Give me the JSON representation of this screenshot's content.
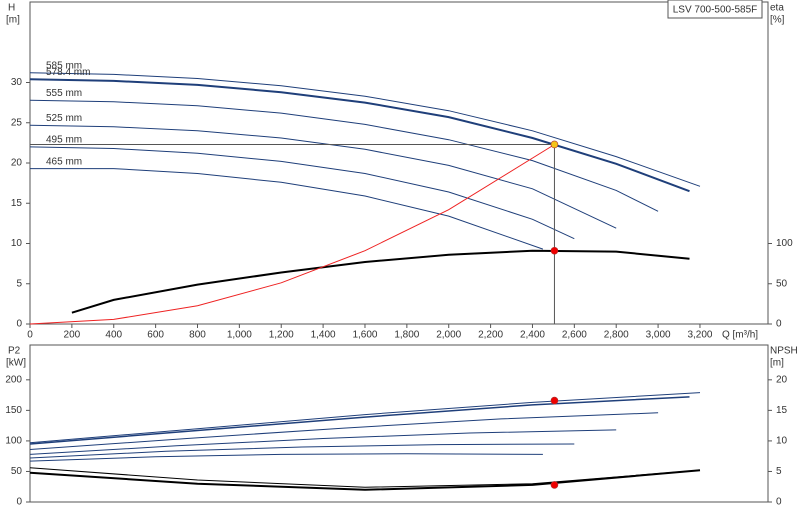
{
  "chart_data": [
    {
      "type": "line",
      "title": "LSV 700-500-585F",
      "ylabel": "H",
      "yunit": "[m]",
      "y2label": "eta",
      "y2unit": "[%]",
      "xlabel": "Q [m³/h]",
      "xlim": [
        0,
        3525
      ],
      "xticks": [
        0,
        200,
        400,
        600,
        800,
        {
          "value": 1000,
          "label": "1,000"
        },
        {
          "value": 1200,
          "label": "1,200"
        },
        {
          "value": 1400,
          "label": "1,400"
        },
        {
          "value": 1600,
          "label": "1,600"
        },
        {
          "value": 1800,
          "label": "1,800"
        },
        {
          "value": 2000,
          "label": "2,000"
        },
        {
          "value": 2200,
          "label": "2,200"
        },
        {
          "value": 2400,
          "label": "2,400"
        },
        {
          "value": 2600,
          "label": "2,600"
        },
        {
          "value": 2800,
          "label": "2,800"
        },
        {
          "value": 3000,
          "label": "3,000"
        },
        {
          "value": 3200,
          "label": "3,200"
        }
      ],
      "ylim": [
        0,
        40
      ],
      "yticks": [
        0,
        5,
        10,
        15,
        20,
        25,
        30
      ],
      "y2lim": [
        0,
        400
      ],
      "y2ticks": [
        0,
        50,
        100
      ],
      "series": [
        {
          "name": "585 mm",
          "color": "#1f3f7a",
          "width": 1,
          "x": [
            0,
            400,
            800,
            1200,
            1600,
            2000,
            2400,
            2800,
            3200
          ],
          "values": [
            31.2,
            31.0,
            30.5,
            29.6,
            28.3,
            26.5,
            24.0,
            20.8,
            17.1
          ]
        },
        {
          "name": "578.4 mm",
          "color": "#1f3f7a",
          "width": 2,
          "x": [
            0,
            400,
            800,
            1200,
            1600,
            2000,
            2400,
            2800,
            3150
          ],
          "values": [
            30.4,
            30.2,
            29.7,
            28.8,
            27.5,
            25.7,
            23.1,
            19.9,
            16.5
          ]
        },
        {
          "name": "555 mm",
          "color": "#1f3f7a",
          "width": 1,
          "x": [
            0,
            400,
            800,
            1200,
            1600,
            2000,
            2400,
            2800,
            3000
          ],
          "values": [
            27.8,
            27.6,
            27.1,
            26.2,
            24.8,
            22.9,
            20.3,
            16.6,
            14.0
          ]
        },
        {
          "name": "525 mm",
          "color": "#1f3f7a",
          "width": 1,
          "x": [
            0,
            400,
            800,
            1200,
            1600,
            2000,
            2400,
            2800
          ],
          "values": [
            24.7,
            24.5,
            24.0,
            23.1,
            21.7,
            19.7,
            16.8,
            11.9
          ]
        },
        {
          "name": "495 mm",
          "color": "#1f3f7a",
          "width": 1,
          "x": [
            0,
            400,
            800,
            1200,
            1600,
            2000,
            2400,
            2600
          ],
          "values": [
            22.0,
            21.8,
            21.2,
            20.2,
            18.7,
            16.4,
            13.0,
            10.6
          ]
        },
        {
          "name": "465 mm",
          "color": "#1f3f7a",
          "width": 1,
          "x": [
            0,
            400,
            800,
            1200,
            1600,
            2000,
            2450
          ],
          "values": [
            19.3,
            19.3,
            18.7,
            17.6,
            15.9,
            13.4,
            9.3
          ]
        },
        {
          "color": "#000000",
          "width": 2,
          "axis": "y2",
          "x": [
            200,
            400,
            800,
            1200,
            1600,
            2000,
            2400,
            2800,
            3150
          ],
          "values": [
            14,
            30,
            49,
            64,
            77,
            86,
            91,
            90,
            81
          ]
        },
        {
          "color": "#ee2222",
          "width": 1,
          "x": [
            0,
            400,
            800,
            1200,
            1600,
            2000,
            2505
          ],
          "values": [
            0,
            0.57,
            2.27,
            5.12,
            9.1,
            14.2,
            22.3
          ]
        }
      ],
      "points": [
        {
          "x": 2505,
          "y": 22.3,
          "color": "#f5c518",
          "guide": true
        },
        {
          "x": 2505,
          "y": 91,
          "color": "#ee0000",
          "axis": "y2"
        }
      ]
    },
    {
      "type": "line",
      "ylabel": "P2",
      "yunit": "[kW]",
      "y2label": "NPSH",
      "y2unit": "[m]",
      "xlim": [
        0,
        3525
      ],
      "ylim": [
        0,
        257
      ],
      "yticks": [
        0,
        50,
        100,
        150,
        200
      ],
      "y2lim": [
        0,
        25.7
      ],
      "y2ticks": [
        0,
        5,
        10,
        15,
        20
      ],
      "series": [
        {
          "color": "#1f3f7a",
          "width": 1,
          "x": [
            0,
            800,
            1600,
            2400,
            3200
          ],
          "values": [
            97,
            120,
            143,
            163,
            179
          ]
        },
        {
          "color": "#1f3f7a",
          "width": 1.5,
          "x": [
            0,
            800,
            1600,
            2400,
            3150
          ],
          "values": [
            95,
            117,
            139,
            159,
            172
          ]
        },
        {
          "color": "#1f3f7a",
          "width": 1,
          "x": [
            0,
            750,
            1500,
            2250,
            3000
          ],
          "values": [
            86,
            104,
            121,
            136,
            146
          ]
        },
        {
          "color": "#1f3f7a",
          "width": 1,
          "x": [
            0,
            700,
            1400,
            2100,
            2800
          ],
          "values": [
            78,
            92,
            104,
            113,
            118
          ]
        },
        {
          "color": "#1f3f7a",
          "width": 1,
          "x": [
            0,
            650,
            1300,
            1950,
            2600
          ],
          "values": [
            72,
            83,
            90,
            94,
            95
          ]
        },
        {
          "color": "#1f3f7a",
          "width": 1,
          "x": [
            0,
            600,
            1200,
            1800,
            2450
          ],
          "values": [
            67,
            74,
            78,
            79,
            78
          ]
        },
        {
          "color": "#000000",
          "width": 2,
          "axis": "y2",
          "x": [
            0,
            800,
            1600,
            2400,
            3200
          ],
          "values": [
            4.8,
            3.0,
            2.0,
            2.8,
            5.2
          ]
        },
        {
          "color": "#000000",
          "width": 1,
          "axis": "y2",
          "x": [
            0,
            800,
            1600,
            2400,
            3200
          ],
          "values": [
            5.6,
            3.6,
            2.4,
            3.0,
            5.2
          ]
        }
      ],
      "points": [
        {
          "x": 2505,
          "y": 166,
          "color": "#ee0000"
        },
        {
          "x": 2505,
          "y": 2.8,
          "color": "#ee0000",
          "axis": "y2"
        }
      ]
    }
  ]
}
